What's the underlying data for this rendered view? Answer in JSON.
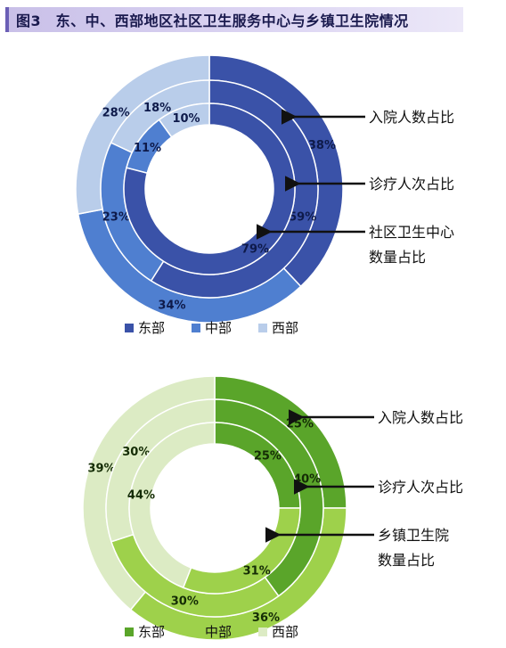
{
  "title": "图3　东、中、西部地区社区卫生服务中心与乡镇卫生院情况",
  "chart_data": [
    {
      "type": "donut",
      "series": [
        {
          "name": "入院人数占比",
          "values": [
            38,
            34,
            28
          ]
        },
        {
          "name": "诊疗人次占比",
          "values": [
            59,
            23,
            18
          ]
        },
        {
          "name": "社区卫生中心数量占比",
          "values": [
            79,
            11,
            10
          ]
        }
      ],
      "categories": [
        "东部",
        "中部",
        "西部"
      ],
      "labels": [
        [
          "38%",
          "34%",
          "28%"
        ],
        [
          "59%",
          "23%",
          "18%"
        ],
        [
          "79%",
          "11%",
          "10%"
        ]
      ],
      "annotations": [
        "入院人数占比",
        "诊疗人次占比",
        "社区卫生中心",
        "数量占比"
      ],
      "colors": [
        "#3a52a8",
        "#4f7fd0",
        "#b9cdea"
      ],
      "legend": [
        "东部",
        "中部",
        "西部"
      ]
    },
    {
      "type": "donut",
      "series": [
        {
          "name": "入院人数占比",
          "values": [
            25,
            36,
            39
          ]
        },
        {
          "name": "诊疗人次占比",
          "values": [
            40,
            30,
            30
          ]
        },
        {
          "name": "乡镇卫生院数量占比",
          "values": [
            25,
            31,
            44
          ]
        }
      ],
      "categories": [
        "东部",
        "中部",
        "西部"
      ],
      "labels": [
        [
          "25%",
          "36%",
          "39%"
        ],
        [
          "40%",
          "30%",
          "30%"
        ],
        [
          "25%",
          "31%",
          "44%"
        ]
      ],
      "annotations": [
        "入院人数占比",
        "诊疗人次占比",
        "乡镇卫生院",
        "数量占比"
      ],
      "colors": [
        "#5aa52a",
        "#9ed14b",
        "#dcebc4"
      ],
      "legend": [
        "东部",
        "中部",
        "西部"
      ]
    }
  ]
}
